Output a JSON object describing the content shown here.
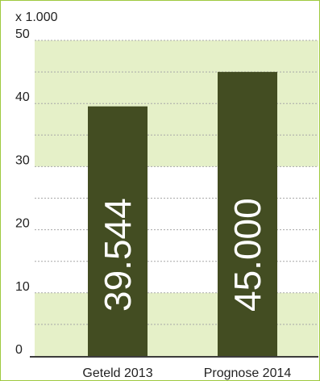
{
  "chart_data": {
    "type": "bar",
    "unit_label": "x 1.000",
    "categories": [
      "Geteld 2013",
      "Prognose 2014"
    ],
    "values": [
      39.544,
      45.0
    ],
    "data_labels": [
      "39.544",
      "45.000"
    ],
    "ylim": [
      0,
      50
    ],
    "y_ticks": [
      0,
      10,
      20,
      30,
      40,
      50
    ],
    "y_tick_labels": [
      "0",
      "10",
      "20",
      "30",
      "40",
      "50"
    ],
    "grid": true,
    "band_ranges": [
      [
        0,
        10
      ],
      [
        30,
        50
      ]
    ],
    "colors": {
      "bar": "#434d22",
      "band": "#e5f0c8",
      "gridline": "#a8a8a8",
      "axis": "#3c3c3c",
      "frame": "#9fc93f",
      "data_label": "#ffffff",
      "text": "#222222"
    }
  }
}
